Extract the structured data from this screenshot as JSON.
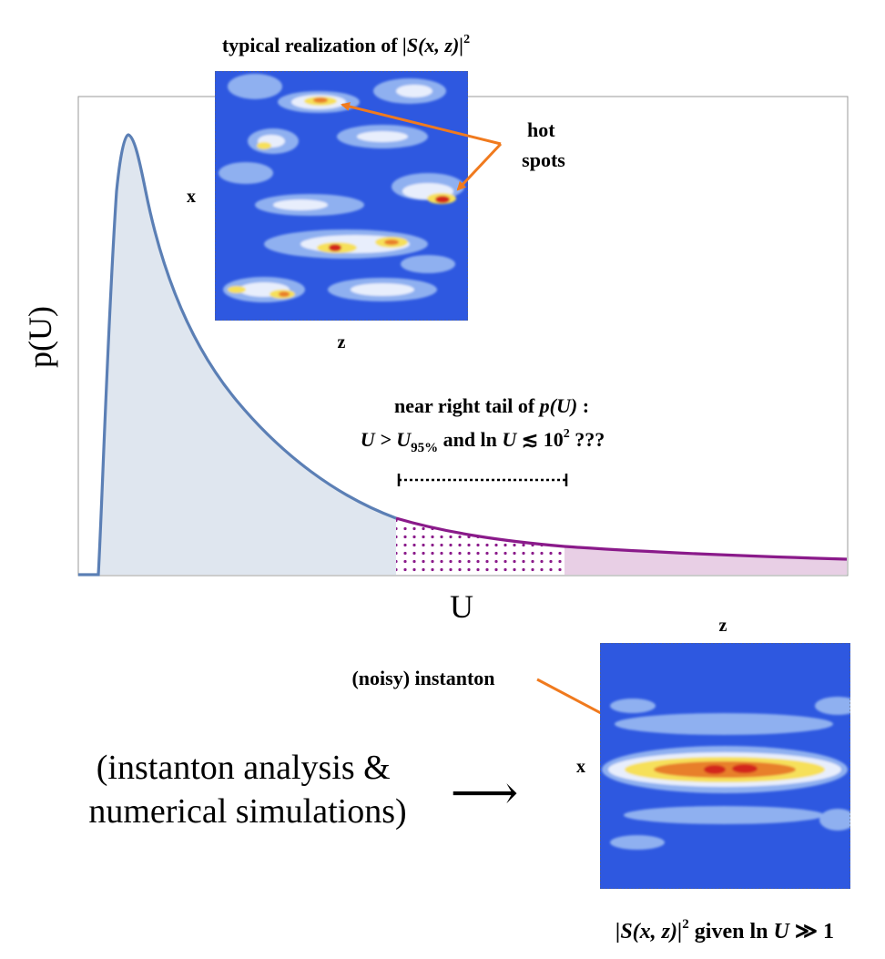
{
  "colors": {
    "pdf_line": "#5b7fb5",
    "pdf_fill": "#dfe6ef",
    "tail_line": "#8a1a8a",
    "tail_fill": "#e8cfe5",
    "arrow": "#f07a1e",
    "map_blue": "#2e58e0"
  },
  "top_map": {
    "title_prefix": "typical realization of ",
    "title_math": "|S(x, z)|",
    "title_sup": "2",
    "x_label": "x",
    "z_label": "z",
    "hot_spots_line1": "hot",
    "hot_spots_line2": "spots"
  },
  "main_plot": {
    "ylabel": "p(U)",
    "xlabel": "U",
    "tail_annotation_line1_text": "near right tail of ",
    "tail_annotation_line1_math": "p(U)",
    "tail_annotation_line1_end": " :",
    "tail_annotation_line2_a": "U > U",
    "tail_annotation_line2_sub": "95%",
    "tail_annotation_line2_b": " and ln ",
    "tail_annotation_line2_c": "U",
    "tail_annotation_line2_d": " ≲ 10",
    "tail_annotation_line2_sup": "2",
    "tail_annotation_line2_e": " ???"
  },
  "bottom": {
    "analysis_line1": "(instanton analysis &",
    "analysis_line2": "numerical simulations)",
    "arrow_glyph": "⟶",
    "instanton_label": "(noisy) instanton",
    "z_label": "z",
    "x_label": "x",
    "caption_a": "|S(x, z)|",
    "caption_sup": "2",
    "caption_b": " given ln ",
    "caption_c": "U",
    "caption_d": " ≫ 1"
  }
}
